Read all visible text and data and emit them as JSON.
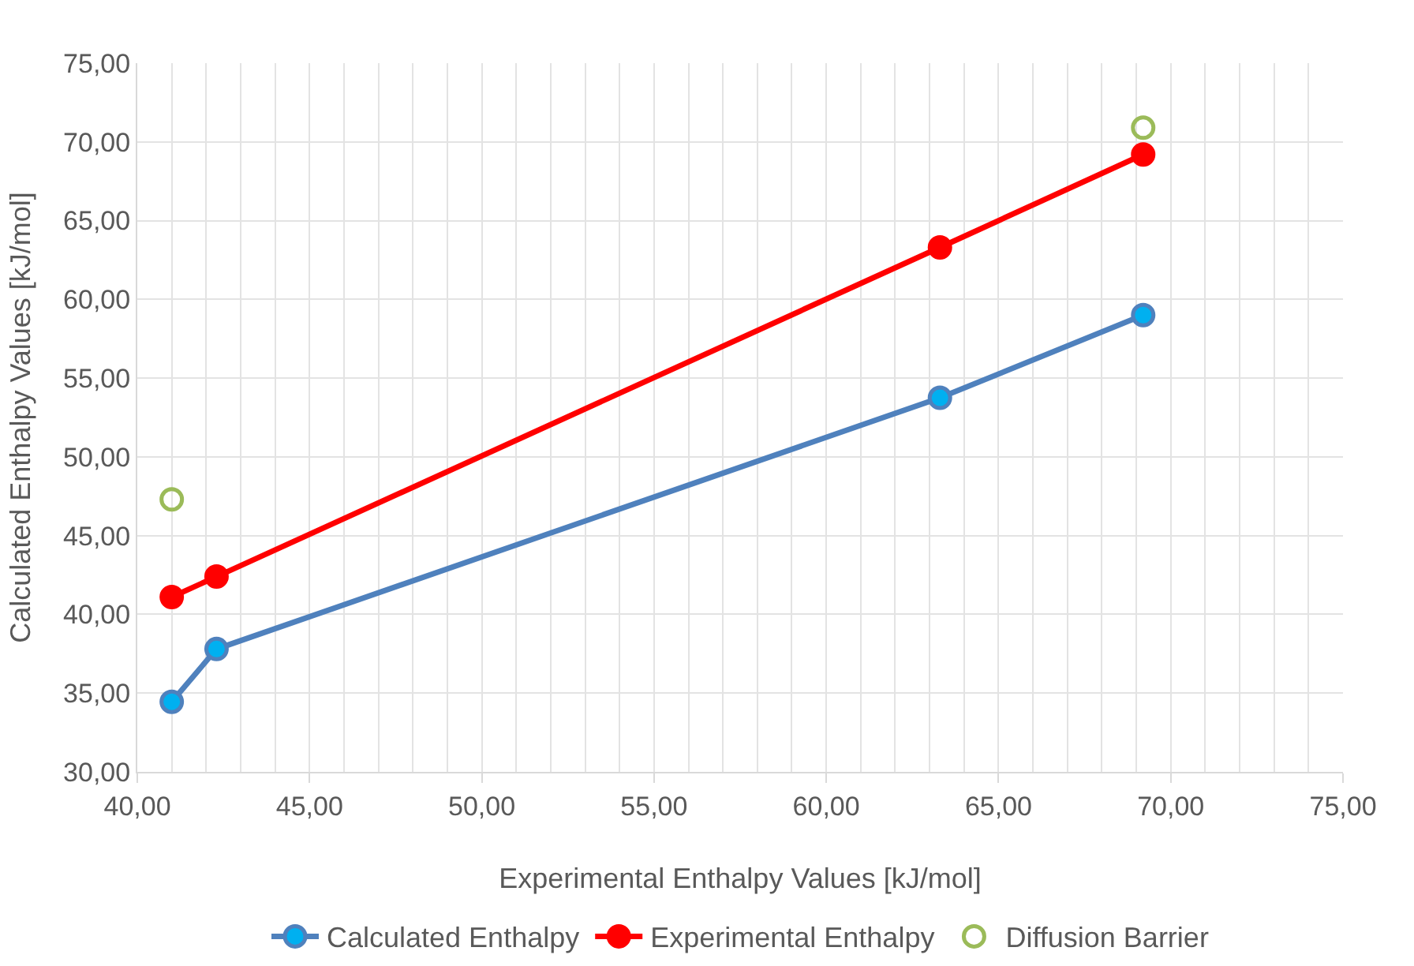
{
  "chart_data": {
    "type": "line",
    "xlabel": "Experimental Enthalpy Values [kJ/mol]",
    "ylabel": "Calculated Enthalpy Values [kJ/mol]",
    "series": [
      {
        "name": "Calculated Enthalpy",
        "color": "#4f81bd",
        "x": [
          41.0,
          42.3,
          63.3,
          69.2
        ],
        "values": [
          34.45,
          37.8,
          53.75,
          59.0
        ]
      },
      {
        "name": "Experimental Enthalpy",
        "color": "#ff0000",
        "x": [
          41.0,
          42.3,
          63.3,
          69.2
        ],
        "values": [
          41.1,
          42.4,
          63.3,
          69.2
        ]
      },
      {
        "name": "Diffusion Barrier",
        "color": "#9bbb59",
        "type": "scatter",
        "x": [
          41.0,
          69.2
        ],
        "values": [
          47.3,
          70.9
        ]
      }
    ],
    "xlim": [
      40,
      75
    ],
    "ylim": [
      30,
      75
    ],
    "xticks": [
      {
        "value": 40,
        "label": "40,00"
      },
      {
        "value": 45,
        "label": "45,00"
      },
      {
        "value": 50,
        "label": "50,00"
      },
      {
        "value": 55,
        "label": "55,00"
      },
      {
        "value": 60,
        "label": "60,00"
      },
      {
        "value": 65,
        "label": "65,00"
      },
      {
        "value": 70,
        "label": "70,00"
      },
      {
        "value": 75,
        "label": "75,00"
      }
    ],
    "yticks": [
      {
        "value": 30,
        "label": "30,00"
      },
      {
        "value": 35,
        "label": "35,00"
      },
      {
        "value": 40,
        "label": "40,00"
      },
      {
        "value": 45,
        "label": "45,00"
      },
      {
        "value": 50,
        "label": "50,00"
      },
      {
        "value": 55,
        "label": "55,00"
      },
      {
        "value": 60,
        "label": "60,00"
      },
      {
        "value": 65,
        "label": "65,00"
      },
      {
        "value": 70,
        "label": "70,00"
      },
      {
        "value": 75,
        "label": "75,00"
      }
    ],
    "grid": true,
    "legend": "bottom",
    "marker": "circle"
  }
}
